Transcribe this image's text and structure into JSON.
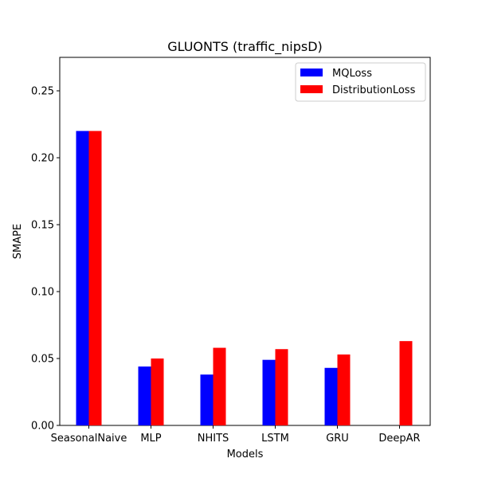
{
  "chart_data": {
    "type": "bar",
    "title": "GLUONTS (traffic_nipsD)",
    "xlabel": "Models",
    "ylabel": "SMAPE",
    "categories": [
      "SeasonalNaive",
      "MLP",
      "NHITS",
      "LSTM",
      "GRU",
      "DeepAR"
    ],
    "series": [
      {
        "name": "MQLoss",
        "color": "#0000ff",
        "values": [
          0.22,
          0.044,
          0.038,
          0.049,
          0.043,
          null
        ]
      },
      {
        "name": "DistributionLoss",
        "color": "#ff0000",
        "values": [
          0.22,
          0.05,
          0.058,
          0.057,
          0.053,
          0.063
        ]
      }
    ],
    "ylim": [
      0,
      0.275
    ],
    "yticks": [
      "0.00",
      "0.05",
      "0.10",
      "0.15",
      "0.20",
      "0.25"
    ],
    "legend": "top-right",
    "grid": false
  }
}
